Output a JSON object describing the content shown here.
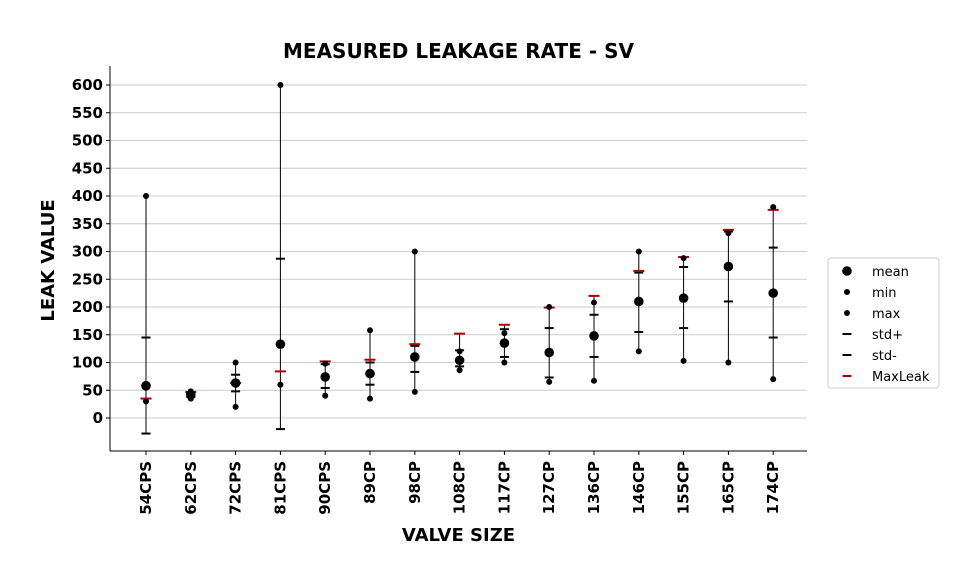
{
  "chart_data": {
    "type": "scatter",
    "title": "MEASURED LEAKAGE RATE - SV",
    "xlabel": "VALVE SIZE",
    "ylabel": "LEAK VALUE",
    "ylim": [
      -60,
      630
    ],
    "yticks": [
      0,
      50,
      100,
      150,
      200,
      250,
      300,
      350,
      400,
      450,
      500,
      550,
      600
    ],
    "grid": "horizontal",
    "legend_position": "right",
    "categories": [
      "54CPS",
      "62CPS",
      "72CPS",
      "81CPS",
      "90CPS",
      "89CP",
      "98CP",
      "108CP",
      "117CP",
      "127CP",
      "136CP",
      "146CP",
      "155CP",
      "165CP",
      "174CP"
    ],
    "series": [
      {
        "name": "mean",
        "marker": "large-dot",
        "color": "#000000",
        "values": [
          58,
          42,
          63,
          133,
          74,
          80,
          110,
          104,
          135,
          118,
          148,
          210,
          216,
          273,
          225
        ]
      },
      {
        "name": "min",
        "marker": "small-dot",
        "color": "#000000",
        "values": [
          30,
          35,
          20,
          60,
          40,
          35,
          47,
          86,
          100,
          65,
          67,
          120,
          103,
          100,
          70
        ]
      },
      {
        "name": "max",
        "marker": "small-dot",
        "color": "#000000",
        "values": [
          400,
          48,
          100,
          600,
          98,
          158,
          300,
          120,
          153,
          200,
          208,
          300,
          288,
          333,
          380
        ]
      },
      {
        "name": "std+",
        "marker": "hline",
        "color": "#000000",
        "values": [
          145,
          45,
          78,
          287,
          97,
          100,
          130,
          122,
          160,
          162,
          186,
          262,
          272,
          336,
          307
        ]
      },
      {
        "name": "std-",
        "marker": "hline",
        "color": "#000000",
        "values": [
          -28,
          38,
          48,
          -20,
          54,
          60,
          83,
          93,
          110,
          73,
          110,
          155,
          162,
          210,
          145
        ]
      },
      {
        "name": "MaxLeak",
        "marker": "hline",
        "color": "#aa0000",
        "values": [
          35,
          47,
          63,
          84,
          102,
          105,
          133,
          152,
          168,
          199,
          220,
          265,
          290,
          339,
          375
        ]
      }
    ]
  }
}
